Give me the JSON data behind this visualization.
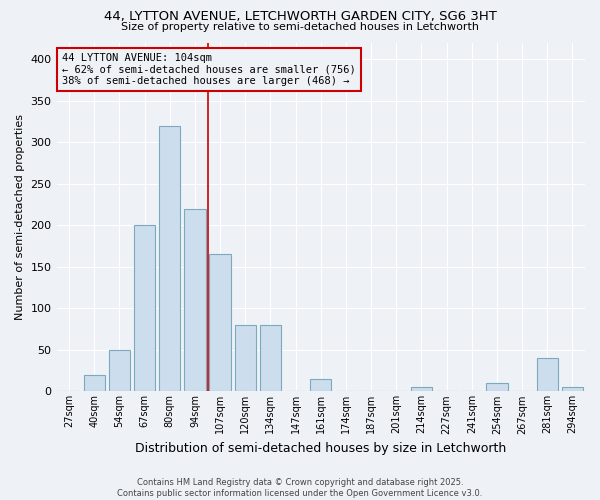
{
  "title1": "44, LYTTON AVENUE, LETCHWORTH GARDEN CITY, SG6 3HT",
  "title2": "Size of property relative to semi-detached houses in Letchworth",
  "xlabel": "Distribution of semi-detached houses by size in Letchworth",
  "ylabel": "Number of semi-detached properties",
  "annotation_line1": "44 LYTTON AVENUE: 104sqm",
  "annotation_line2": "← 62% of semi-detached houses are smaller (756)",
  "annotation_line3": "38% of semi-detached houses are larger (468) →",
  "footer1": "Contains HM Land Registry data © Crown copyright and database right 2025.",
  "footer2": "Contains public sector information licensed under the Open Government Licence v3.0.",
  "bin_labels": [
    "27sqm",
    "40sqm",
    "54sqm",
    "67sqm",
    "80sqm",
    "94sqm",
    "107sqm",
    "120sqm",
    "134sqm",
    "147sqm",
    "161sqm",
    "174sqm",
    "187sqm",
    "201sqm",
    "214sqm",
    "227sqm",
    "241sqm",
    "254sqm",
    "267sqm",
    "281sqm",
    "294sqm"
  ],
  "bar_values": [
    0,
    20,
    50,
    200,
    320,
    220,
    165,
    80,
    80,
    0,
    15,
    0,
    0,
    0,
    5,
    0,
    0,
    10,
    0,
    40,
    5
  ],
  "bar_color": "#ccdded",
  "bar_edge_color": "#7aaabb",
  "vline_index": 6,
  "vline_color": "#cc0000",
  "ylim": [
    0,
    420
  ],
  "yticks": [
    0,
    50,
    100,
    150,
    200,
    250,
    300,
    350,
    400
  ],
  "bg_color": "#eef2f7",
  "box_color": "#cc0000",
  "grid_color": "#ffffff"
}
